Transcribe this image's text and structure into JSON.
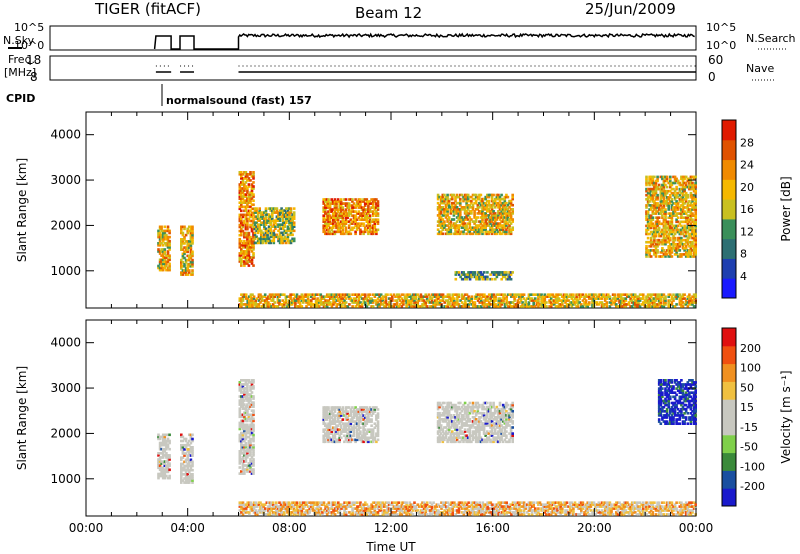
{
  "header": {
    "radar": "TIGER (fitACF)",
    "beam": "Beam 12",
    "date": "25/Jun/2009"
  },
  "top_panels": {
    "nsky_label": "N.Sky",
    "nsky_ticks": [
      "10^5",
      "10^0"
    ],
    "nsearch_label": "N.Search",
    "nsearch_ticks": [
      "10^5",
      "10^0"
    ],
    "freq_label_1": "Freq.",
    "freq_label_2": "[MHz]",
    "freq_ticks": [
      "18",
      "8"
    ],
    "nave_label": "Nave",
    "nave_ticks": [
      "60",
      "0"
    ],
    "cpid_label": "CPID",
    "cpid_text": "normalsound (fast) 157"
  },
  "colors": {
    "power_scale": [
      "#1a1aff",
      "#1e3fb0",
      "#2d6f73",
      "#3a8f5a",
      "#c9c020",
      "#f5b800",
      "#f08a00",
      "#e05200",
      "#e01a00"
    ],
    "velocity_scale": [
      "#1a1acc",
      "#1a4fa0",
      "#3a8a3a",
      "#7fd04a",
      "#c8c8c0",
      "#c8c8c0",
      "#f0c040",
      "#f09020",
      "#f05010",
      "#e01010"
    ]
  },
  "chart_data": [
    {
      "type": "heatmap",
      "name": "power",
      "ylabel": "Slant Range [km]",
      "ylim": [
        180,
        4500
      ],
      "yticks": [
        "4000",
        "3000",
        "2000",
        "1000"
      ],
      "xlim": [
        0,
        24
      ],
      "colorbar_label": "Power [dB]",
      "colorbar_ticks": [
        "28",
        "24",
        "20",
        "16",
        "12",
        "8",
        "4"
      ],
      "regions": [
        {
          "t": [
            2.8,
            3.3
          ],
          "r": [
            1000,
            2000
          ],
          "level": 5
        },
        {
          "t": [
            3.7,
            4.2
          ],
          "r": [
            900,
            2000
          ],
          "level": 5
        },
        {
          "t": [
            6.0,
            6.6
          ],
          "r": [
            1100,
            3200
          ],
          "level": 6
        },
        {
          "t": [
            6.6,
            8.2
          ],
          "r": [
            1600,
            2400
          ],
          "level": 4
        },
        {
          "t": [
            9.3,
            11.5
          ],
          "r": [
            1800,
            2600
          ],
          "level": 6
        },
        {
          "t": [
            13.8,
            16.8
          ],
          "r": [
            1800,
            2700
          ],
          "level": 5
        },
        {
          "t": [
            14.5,
            16.8
          ],
          "r": [
            800,
            1000
          ],
          "level": 3
        },
        {
          "t": [
            22.0,
            24.0
          ],
          "r": [
            1300,
            3100
          ],
          "level": 5
        },
        {
          "t": [
            6.0,
            24.0
          ],
          "r": [
            200,
            500
          ],
          "level": 5
        }
      ]
    },
    {
      "type": "heatmap",
      "name": "velocity",
      "ylabel": "Slant Range [km]",
      "ylim": [
        180,
        4500
      ],
      "yticks": [
        "4000",
        "3000",
        "2000",
        "1000"
      ],
      "xlim": [
        0,
        24
      ],
      "xticks": [
        "00:00",
        "04:00",
        "08:00",
        "12:00",
        "16:00",
        "20:00",
        "00:00"
      ],
      "xlabel": "Time UT",
      "colorbar_label": "Velocity [m s⁻¹]",
      "colorbar_ticks": [
        "200",
        "100",
        "50",
        "15",
        "-15",
        "-50",
        "-100",
        "-200"
      ],
      "regions": [
        {
          "t": [
            2.8,
            3.3
          ],
          "r": [
            1000,
            2000
          ],
          "level": 5
        },
        {
          "t": [
            3.7,
            4.2
          ],
          "r": [
            900,
            2000
          ],
          "level": 5
        },
        {
          "t": [
            6.0,
            6.6
          ],
          "r": [
            1100,
            3200
          ],
          "level": 5
        },
        {
          "t": [
            9.3,
            11.5
          ],
          "r": [
            1800,
            2600
          ],
          "level": 5
        },
        {
          "t": [
            13.8,
            16.8
          ],
          "r": [
            1800,
            2700
          ],
          "level": 5
        },
        {
          "t": [
            22.5,
            24.0
          ],
          "r": [
            2200,
            3200
          ],
          "level": 0
        },
        {
          "t": [
            6.0,
            24.0
          ],
          "r": [
            200,
            500
          ],
          "level": 6
        }
      ]
    }
  ]
}
